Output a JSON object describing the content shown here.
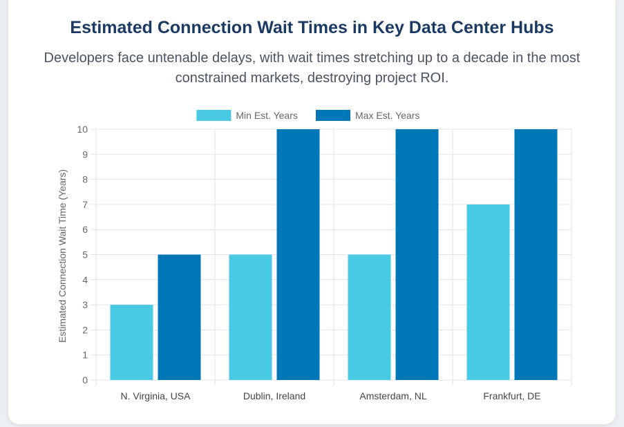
{
  "header": {
    "title": "Estimated Connection Wait Times in Key Data Center Hubs",
    "subtitle": "Developers face untenable delays, with wait times stretching up to a decade in the most constrained markets, destroying project ROI."
  },
  "colors": {
    "min_series": "#48cae4",
    "max_series": "#0077b6",
    "grid": "#e3e3e3",
    "axis_text": "#666666"
  },
  "chart_data": {
    "type": "bar",
    "title": "",
    "xlabel": "",
    "ylabel": "Estimated Connection Wait Time (Years)",
    "categories": [
      "N. Virginia, USA",
      "Dublin, Ireland",
      "Amsterdam, NL",
      "Frankfurt, DE"
    ],
    "series": [
      {
        "name": "Min Est. Years",
        "values": [
          3,
          5,
          5,
          7
        ]
      },
      {
        "name": "Max Est. Years",
        "values": [
          5,
          10,
          10,
          10
        ]
      }
    ],
    "ylim": [
      0,
      10
    ],
    "yticks": [
      0,
      1,
      2,
      3,
      4,
      5,
      6,
      7,
      8,
      9,
      10
    ],
    "grid": true,
    "legend_position": "top"
  }
}
